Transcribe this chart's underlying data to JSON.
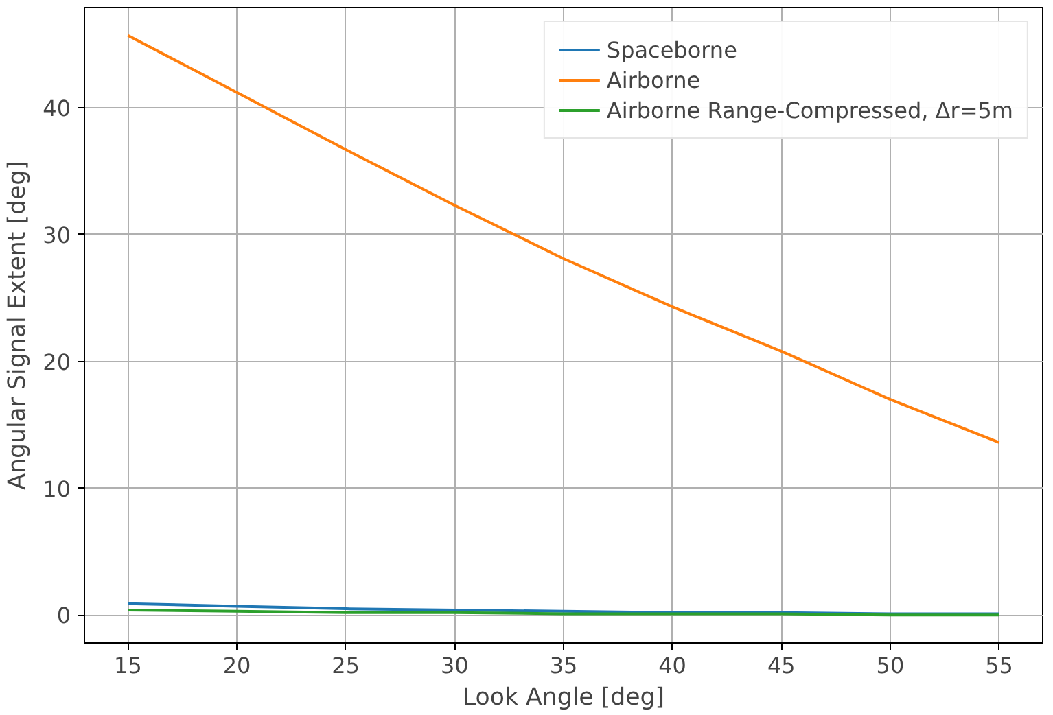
{
  "chart_data": {
    "type": "line",
    "xlabel": "Look Angle [deg]",
    "ylabel": "Angular Signal Extent [deg]",
    "x": [
      15,
      20,
      25,
      30,
      35,
      40,
      45,
      50,
      55
    ],
    "series": [
      {
        "name": "Spaceborne",
        "color": "#1f77b4",
        "values": [
          0.9,
          0.7,
          0.5,
          0.4,
          0.3,
          0.2,
          0.2,
          0.1,
          0.1
        ]
      },
      {
        "name": "Airborne",
        "color": "#ff7f0e",
        "values": [
          45.7,
          41.2,
          36.7,
          32.3,
          28.1,
          24.3,
          20.8,
          17.0,
          13.6
        ]
      },
      {
        "name": "Airborne Range-Compressed, Δr=5m",
        "color": "#2ca02c",
        "values": [
          0.4,
          0.3,
          0.2,
          0.2,
          0.1,
          0.1,
          0.1,
          0.0,
          0.0
        ]
      }
    ],
    "xlim": [
      13,
      57
    ],
    "ylim": [
      -2.2,
      47.9
    ],
    "xticks": [
      15,
      20,
      25,
      30,
      35,
      40,
      45,
      50,
      55
    ],
    "yticks": [
      0,
      10,
      20,
      30,
      40
    ],
    "grid": true,
    "legend": "top right",
    "line_style": "solid",
    "marker": "none"
  }
}
